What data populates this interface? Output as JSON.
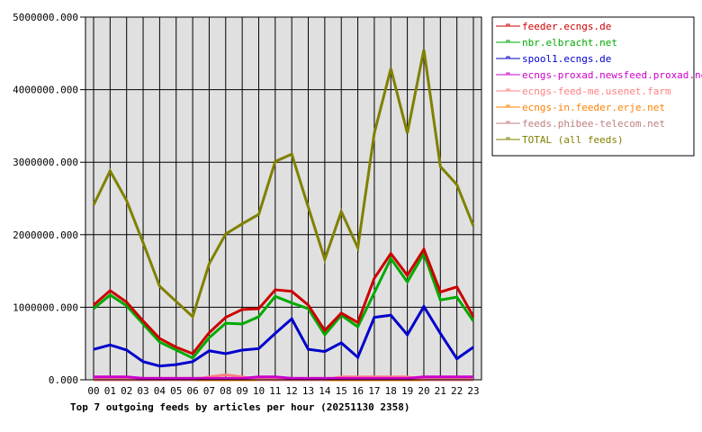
{
  "chart_data": {
    "type": "line",
    "title": "Top 7 outgoing feeds by articles per hour (20251130 2358)",
    "xlabel": "",
    "ylabel": "",
    "ylim": [
      0,
      5000000
    ],
    "grid": true,
    "legend_placement": "right",
    "plot_background": "#e0e0e0",
    "y_ticks": [
      "0.000",
      "1000000.000",
      "2000000.000",
      "3000000.000",
      "4000000.000",
      "5000000.000"
    ],
    "y_tick_values": [
      0,
      1000000,
      2000000,
      3000000,
      4000000,
      5000000
    ],
    "categories": [
      "00",
      "01",
      "02",
      "03",
      "04",
      "05",
      "06",
      "07",
      "08",
      "09",
      "10",
      "11",
      "12",
      "13",
      "14",
      "15",
      "16",
      "17",
      "18",
      "19",
      "20",
      "21",
      "22",
      "23"
    ],
    "series": [
      {
        "name": "feeder.ecngs.de",
        "color": "#cc0000",
        "values": [
          1030000,
          1230000,
          1070000,
          810000,
          570000,
          450000,
          360000,
          650000,
          860000,
          970000,
          980000,
          1240000,
          1220000,
          1030000,
          680000,
          920000,
          790000,
          1400000,
          1740000,
          1440000,
          1800000,
          1210000,
          1280000,
          870000
        ]
      },
      {
        "name": "nbr.elbracht.net",
        "color": "#00aa00",
        "values": [
          980000,
          1170000,
          1020000,
          770000,
          520000,
          410000,
          300000,
          580000,
          780000,
          770000,
          870000,
          1150000,
          1060000,
          980000,
          620000,
          890000,
          730000,
          1200000,
          1670000,
          1350000,
          1740000,
          1100000,
          1140000,
          810000
        ]
      },
      {
        "name": "spool1.ecngs.de",
        "color": "#0000cc",
        "values": [
          420000,
          480000,
          410000,
          250000,
          190000,
          210000,
          250000,
          400000,
          360000,
          410000,
          430000,
          640000,
          840000,
          420000,
          390000,
          510000,
          310000,
          860000,
          890000,
          620000,
          1010000,
          640000,
          290000,
          450000
        ]
      },
      {
        "name": "ecngs-proxad.newsfeed.proxad.net",
        "color": "#cc00cc",
        "values": [
          40000,
          40000,
          40000,
          20000,
          20000,
          20000,
          20000,
          20000,
          20000,
          20000,
          40000,
          40000,
          20000,
          20000,
          20000,
          20000,
          20000,
          20000,
          20000,
          20000,
          40000,
          40000,
          40000,
          40000
        ]
      },
      {
        "name": "ecngs-feed-me.usenet.farm",
        "color": "#ff8080",
        "values": [
          0,
          0,
          0,
          0,
          0,
          0,
          0,
          40000,
          70000,
          40000,
          0,
          0,
          0,
          0,
          0,
          40000,
          40000,
          40000,
          40000,
          40000,
          0,
          0,
          0,
          0
        ]
      },
      {
        "name": "ecngs-in.feeder.erje.net",
        "color": "#ff8000",
        "values": [
          0,
          0,
          0,
          0,
          0,
          0,
          0,
          0,
          0,
          0,
          0,
          0,
          0,
          0,
          0,
          0,
          0,
          0,
          0,
          0,
          0,
          0,
          0,
          0
        ]
      },
      {
        "name": "feeds.phibee-telecom.net",
        "color": "#c08080",
        "values": [
          20000,
          20000,
          20000,
          20000,
          20000,
          20000,
          20000,
          20000,
          20000,
          20000,
          20000,
          20000,
          20000,
          20000,
          20000,
          20000,
          20000,
          20000,
          20000,
          20000,
          20000,
          20000,
          20000,
          20000
        ]
      },
      {
        "name": "TOTAL (all feeds)",
        "color": "#808000",
        "values": [
          2410000,
          2880000,
          2470000,
          1890000,
          1290000,
          1080000,
          870000,
          1600000,
          2010000,
          2150000,
          2280000,
          3010000,
          3110000,
          2380000,
          1660000,
          2320000,
          1820000,
          3400000,
          4290000,
          3400000,
          4550000,
          2940000,
          2690000,
          2120000
        ]
      }
    ]
  }
}
